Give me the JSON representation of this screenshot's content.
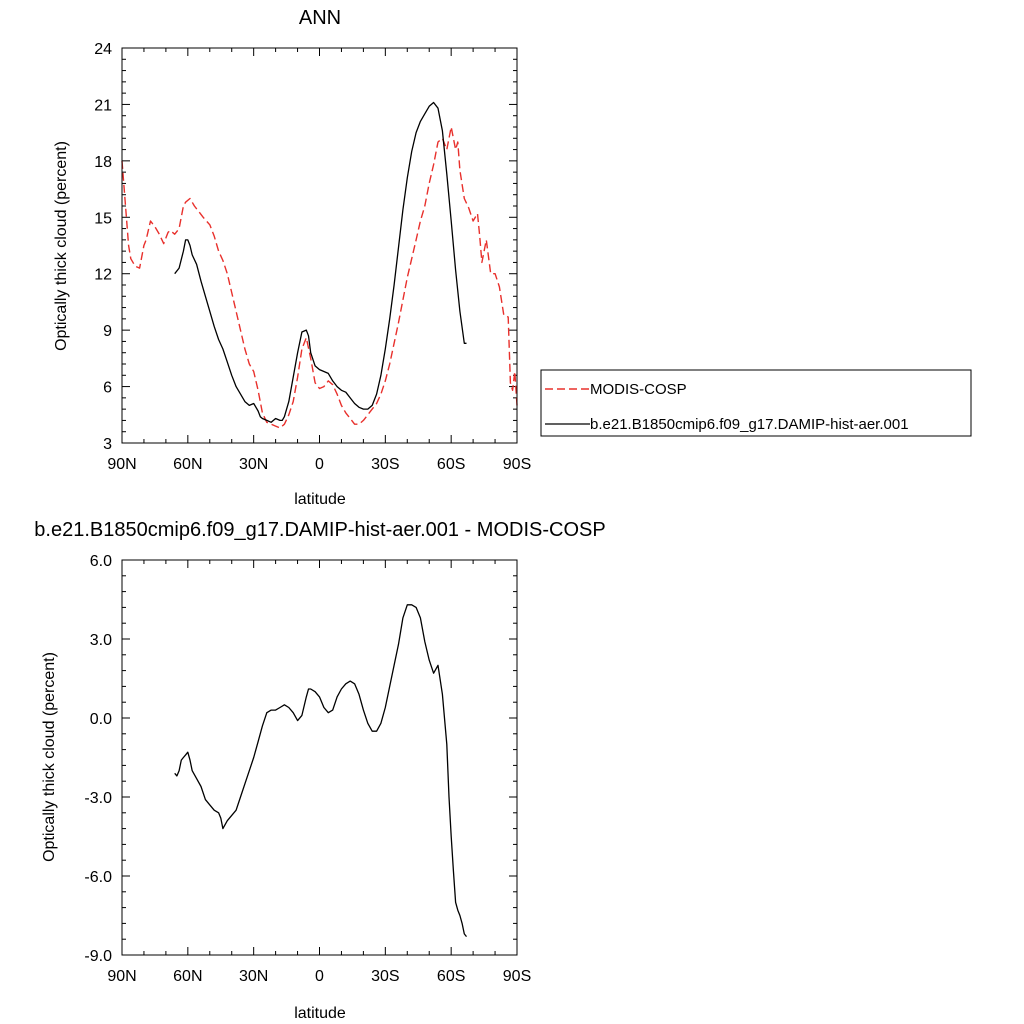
{
  "chart_data": [
    {
      "type": "line",
      "title": "ANN",
      "xlabel": "latitude",
      "ylabel": "Optically thick cloud (percent)",
      "xlim": [
        90,
        -90
      ],
      "ylim": [
        3,
        24
      ],
      "xticks": [
        90,
        60,
        30,
        0,
        -30,
        -60,
        -90
      ],
      "xtick_labels": [
        "90N",
        "60N",
        "30N",
        "0",
        "30S",
        "60S",
        "90S"
      ],
      "yticks": [
        3,
        6,
        9,
        12,
        15,
        18,
        21,
        24
      ],
      "ytick_labels": [
        "3",
        "6",
        "9",
        "12",
        "15",
        "18",
        "21",
        "24"
      ],
      "legend": {
        "placement": "right",
        "entries": [
          "MODIS-COSP",
          "b.e21.B1850cmip6.f09_g17.DAMIP-hist-aer.001"
        ]
      },
      "series": [
        {
          "name": "MODIS-COSP",
          "color": "#e8302c",
          "dash": "dashed",
          "x": [
            90,
            89,
            88,
            87,
            86,
            84,
            82,
            80,
            79,
            77,
            75,
            73,
            71,
            69,
            68,
            66,
            64,
            62,
            61,
            59,
            57,
            55,
            53,
            50,
            48,
            46,
            44,
            42,
            40,
            38,
            36,
            34,
            32,
            30,
            28,
            26,
            24,
            22,
            20,
            18,
            16,
            14,
            12,
            10,
            8,
            6,
            4,
            2,
            0,
            -2,
            -4,
            -6,
            -8,
            -10,
            -12,
            -14,
            -16,
            -18,
            -20,
            -22,
            -24,
            -26,
            -28,
            -30,
            -32,
            -34,
            -36,
            -38,
            -40,
            -42,
            -44,
            -46,
            -48,
            -50,
            -52,
            -54,
            -56,
            -58,
            -60,
            -62,
            -63,
            -64,
            -66,
            -68,
            -70,
            -72,
            -73,
            -74,
            -76,
            -78,
            -80,
            -82,
            -84,
            -86,
            -87,
            -88,
            -89,
            -90
          ],
          "y": [
            18.0,
            16.5,
            15.0,
            13.5,
            12.8,
            12.4,
            12.3,
            13.5,
            13.8,
            14.8,
            14.5,
            14.1,
            13.6,
            14.2,
            14.3,
            14.1,
            14.4,
            15.6,
            15.8,
            16.0,
            15.6,
            15.3,
            15.0,
            14.6,
            14.0,
            13.2,
            12.7,
            12.0,
            11.0,
            10.0,
            9.0,
            8.0,
            7.2,
            6.8,
            5.8,
            4.6,
            4.1,
            4.0,
            3.9,
            3.8,
            4.0,
            4.5,
            5.2,
            6.5,
            8.0,
            8.6,
            7.5,
            6.2,
            5.9,
            6.0,
            6.3,
            6.1,
            5.6,
            5.0,
            4.6,
            4.3,
            4.0,
            4.0,
            4.2,
            4.5,
            4.8,
            5.1,
            5.6,
            6.3,
            7.2,
            8.3,
            9.4,
            10.6,
            11.8,
            12.8,
            13.8,
            14.8,
            15.6,
            16.8,
            17.8,
            19.0,
            19.2,
            18.6,
            19.8,
            18.6,
            19.0,
            17.5,
            16.0,
            15.5,
            14.8,
            15.2,
            14.0,
            12.6,
            13.8,
            12.0,
            12.0,
            11.3,
            9.8,
            9.7,
            6.2,
            5.8,
            6.8,
            5.0
          ]
        },
        {
          "name": "b.e21.B1850cmip6.f09_g17.DAMIP-hist-aer.001",
          "color": "#000000",
          "dash": "solid",
          "x": [
            66,
            64,
            62,
            61,
            60,
            59,
            58,
            56,
            54,
            52,
            50,
            48,
            46,
            44,
            42,
            40,
            38,
            36,
            34,
            32,
            30,
            28,
            27,
            26,
            24,
            22,
            20,
            18,
            17,
            16,
            14,
            12,
            10,
            8,
            6,
            5,
            4,
            2,
            0,
            -2,
            -4,
            -6,
            -8,
            -10,
            -12,
            -14,
            -16,
            -18,
            -20,
            -22,
            -24,
            -26,
            -28,
            -30,
            -32,
            -34,
            -36,
            -38,
            -40,
            -42,
            -44,
            -46,
            -48,
            -50,
            -52,
            -54,
            -56,
            -58,
            -60,
            -62,
            -64,
            -66,
            -67
          ],
          "y": [
            12.0,
            12.3,
            13.2,
            13.8,
            13.8,
            13.5,
            13.0,
            12.5,
            11.6,
            10.8,
            10.0,
            9.2,
            8.5,
            8.0,
            7.3,
            6.6,
            6.0,
            5.6,
            5.2,
            5.0,
            5.1,
            4.7,
            4.4,
            4.3,
            4.2,
            4.1,
            4.3,
            4.2,
            4.2,
            4.4,
            5.2,
            6.5,
            7.8,
            8.9,
            9.0,
            8.7,
            7.8,
            7.1,
            6.9,
            6.8,
            6.7,
            6.3,
            6.0,
            5.8,
            5.7,
            5.4,
            5.1,
            4.9,
            4.8,
            4.8,
            5.0,
            5.6,
            6.6,
            8.0,
            9.6,
            11.4,
            13.4,
            15.4,
            17.1,
            18.5,
            19.5,
            20.1,
            20.5,
            20.9,
            21.1,
            20.8,
            19.6,
            17.3,
            14.8,
            12.2,
            10.0,
            8.3,
            8.3
          ]
        }
      ]
    },
    {
      "type": "line",
      "title": "b.e21.B1850cmip6.f09_g17.DAMIP-hist-aer.001 - MODIS-COSP",
      "xlabel": "latitude",
      "ylabel": "Optically thick cloud (percent)",
      "xlim": [
        90,
        -90
      ],
      "ylim": [
        -9,
        6
      ],
      "xticks": [
        90,
        60,
        30,
        0,
        -30,
        -60,
        -90
      ],
      "xtick_labels": [
        "90N",
        "60N",
        "30N",
        "0",
        "30S",
        "60S",
        "90S"
      ],
      "yticks": [
        -9,
        -6,
        -3,
        0,
        3,
        6
      ],
      "ytick_labels": [
        "-9.0",
        "-6.0",
        "-3.0",
        "0.0",
        "3.0",
        "6.0"
      ],
      "series": [
        {
          "color": "#000000",
          "dash": "solid",
          "x": [
            66,
            65,
            64,
            63,
            62,
            61,
            60,
            59,
            58,
            56,
            54,
            52,
            50,
            48,
            46,
            45,
            44,
            42,
            40,
            38,
            36,
            34,
            32,
            30,
            28,
            26,
            24,
            22,
            20,
            18,
            16,
            14,
            12,
            10,
            8,
            6,
            5,
            4,
            2,
            0,
            -2,
            -4,
            -6,
            -8,
            -10,
            -12,
            -14,
            -16,
            -18,
            -20,
            -22,
            -24,
            -26,
            -28,
            -30,
            -32,
            -34,
            -36,
            -38,
            -40,
            -42,
            -44,
            -46,
            -48,
            -50,
            -52,
            -54,
            -56,
            -58,
            -59,
            -60,
            -61,
            -62,
            -63,
            -64,
            -65,
            -66,
            -67
          ],
          "y": [
            -2.1,
            -2.2,
            -2.0,
            -1.6,
            -1.5,
            -1.4,
            -1.3,
            -1.6,
            -2.0,
            -2.3,
            -2.6,
            -3.1,
            -3.3,
            -3.5,
            -3.6,
            -3.8,
            -4.2,
            -3.9,
            -3.7,
            -3.5,
            -3.0,
            -2.5,
            -2.0,
            -1.5,
            -0.9,
            -0.3,
            0.2,
            0.3,
            0.3,
            0.4,
            0.5,
            0.4,
            0.2,
            -0.1,
            0.1,
            0.8,
            1.1,
            1.1,
            1.0,
            0.8,
            0.4,
            0.2,
            0.3,
            0.8,
            1.1,
            1.3,
            1.4,
            1.3,
            0.9,
            0.3,
            -0.2,
            -0.5,
            -0.5,
            -0.2,
            0.4,
            1.2,
            2.0,
            2.8,
            3.8,
            4.3,
            4.3,
            4.2,
            3.8,
            2.9,
            2.2,
            1.7,
            2.0,
            0.9,
            -1.0,
            -3.0,
            -4.5,
            -5.8,
            -7.0,
            -7.3,
            -7.5,
            -7.8,
            -8.2,
            -8.3
          ]
        }
      ]
    }
  ]
}
